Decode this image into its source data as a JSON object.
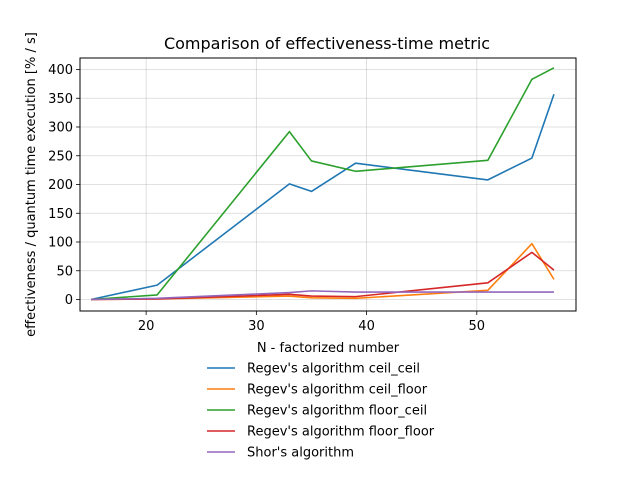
{
  "chart_data": {
    "type": "line",
    "title": "Comparison of effectiveness-time metric",
    "xlabel": "N - factorized number",
    "ylabel": "effectiveness / quantum time execution [% / s]",
    "xlim": [
      14,
      59
    ],
    "ylim": [
      -20,
      420
    ],
    "xticks": [
      20,
      30,
      40,
      50
    ],
    "yticks": [
      0,
      50,
      100,
      150,
      200,
      250,
      300,
      350,
      400
    ],
    "grid": true,
    "legend_position": "below",
    "series": [
      {
        "name": "Regev's algorithm ceil_ceil",
        "color": "#1f77b4",
        "points": [
          [
            15,
            0
          ],
          [
            21,
            25
          ],
          [
            33,
            201
          ],
          [
            35,
            188
          ],
          [
            39,
            237
          ],
          [
            51,
            208
          ],
          [
            55,
            246
          ],
          [
            57,
            357
          ]
        ]
      },
      {
        "name": "Regev's algorithm ceil_floor",
        "color": "#ff7f0e",
        "points": [
          [
            15,
            0
          ],
          [
            21,
            1
          ],
          [
            33,
            6
          ],
          [
            35,
            3
          ],
          [
            39,
            2
          ],
          [
            51,
            16
          ],
          [
            55,
            97
          ],
          [
            57,
            35
          ]
        ]
      },
      {
        "name": "Regev's algorithm floor_ceil",
        "color": "#2ca02c",
        "points": [
          [
            15,
            0
          ],
          [
            21,
            8
          ],
          [
            33,
            292
          ],
          [
            35,
            241
          ],
          [
            39,
            223
          ],
          [
            51,
            242
          ],
          [
            55,
            383
          ],
          [
            57,
            403
          ]
        ]
      },
      {
        "name": "Regev's algorithm floor_floor",
        "color": "#d62728",
        "points": [
          [
            15,
            0
          ],
          [
            21,
            1
          ],
          [
            33,
            9
          ],
          [
            35,
            6
          ],
          [
            39,
            5
          ],
          [
            51,
            29
          ],
          [
            55,
            82
          ],
          [
            57,
            51
          ]
        ]
      },
      {
        "name": "Shor's algorithm",
        "color": "#9467bd",
        "points": [
          [
            15,
            0
          ],
          [
            21,
            2
          ],
          [
            33,
            12
          ],
          [
            35,
            15
          ],
          [
            39,
            13
          ],
          [
            51,
            13
          ],
          [
            55,
            13
          ],
          [
            57,
            13
          ]
        ]
      }
    ]
  }
}
